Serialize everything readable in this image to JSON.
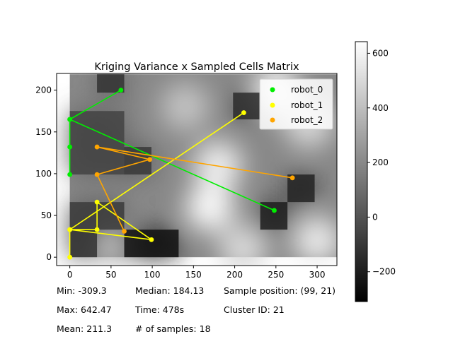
{
  "chart_data": {
    "type": "scatter",
    "title": "Kriging Variance x Sampled Cells Matrix",
    "xlabel": "",
    "ylabel": "",
    "xlim": [
      -16,
      324
    ],
    "ylim": [
      -10,
      220
    ],
    "xticks": [
      0,
      50,
      100,
      150,
      200,
      250,
      300
    ],
    "yticks": [
      0,
      50,
      100,
      150,
      200
    ],
    "heatmap": {
      "cmap": "gray",
      "vmin": -309.3,
      "vmax": 642.47,
      "colorbar_ticks": [
        -200,
        0,
        200,
        400,
        600
      ],
      "dark_cells": [
        {
          "x0": 33,
          "y0": 197,
          "x1": 66,
          "y1": 219,
          "v": -120
        },
        {
          "x0": 0,
          "y0": 99,
          "x1": 66,
          "y1": 175,
          "v": -60
        },
        {
          "x0": 66,
          "y0": 99,
          "x1": 99,
          "y1": 132,
          "v": -100
        },
        {
          "x0": 198,
          "y0": 165,
          "x1": 231,
          "y1": 197,
          "v": -150
        },
        {
          "x0": 231,
          "y0": 33,
          "x1": 264,
          "y1": 66,
          "v": -200
        },
        {
          "x0": 264,
          "y0": 66,
          "x1": 297,
          "y1": 99,
          "v": -180
        },
        {
          "x0": 0,
          "y0": 33,
          "x1": 66,
          "y1": 66,
          "v": -90
        },
        {
          "x0": 0,
          "y0": 0,
          "x1": 33,
          "y1": 33,
          "v": -120
        },
        {
          "x0": 66,
          "y0": 0,
          "x1": 132,
          "y1": 33,
          "v": -250
        }
      ],
      "light_spots": [
        {
          "x": 250,
          "y": 200,
          "v": 600
        },
        {
          "x": 290,
          "y": 160,
          "v": 500
        },
        {
          "x": 170,
          "y": 60,
          "v": 620
        },
        {
          "x": 180,
          "y": 110,
          "v": 580
        },
        {
          "x": 140,
          "y": 180,
          "v": 420
        },
        {
          "x": 300,
          "y": 20,
          "v": 560
        },
        {
          "x": 210,
          "y": 10,
          "v": 500
        },
        {
          "x": 50,
          "y": 20,
          "v": 420
        }
      ]
    },
    "series": [
      {
        "name": "robot_0",
        "color": "#00ee00",
        "points": [
          [
            62,
            200
          ],
          [
            0,
            165
          ],
          [
            0,
            132
          ],
          [
            0,
            99
          ],
          [
            0,
            165
          ],
          [
            248,
            56
          ]
        ]
      },
      {
        "name": "robot_1",
        "color": "#ffff00",
        "points": [
          [
            0,
            0
          ],
          [
            0,
            33
          ],
          [
            33,
            33
          ],
          [
            33,
            66
          ],
          [
            99,
            21
          ],
          [
            0,
            33
          ],
          [
            211,
            173
          ]
        ]
      },
      {
        "name": "robot_2",
        "color": "#ffa500",
        "points": [
          [
            66,
            31
          ],
          [
            33,
            99
          ],
          [
            97,
            117
          ],
          [
            33,
            132
          ],
          [
            270,
            95
          ]
        ]
      }
    ],
    "legend_placement": "upper right",
    "grid": false
  },
  "stats": {
    "min_label": "Min: -309.3",
    "max_label": "Max: 642.47",
    "mean_label": "Mean: 211.3",
    "median_label": "Median: 184.13",
    "time_label": "Time: 478s",
    "samples_label": "# of samples: 18",
    "sample_position_label": "Sample position: (99, 21)",
    "cluster_label": "Cluster ID: 21"
  }
}
